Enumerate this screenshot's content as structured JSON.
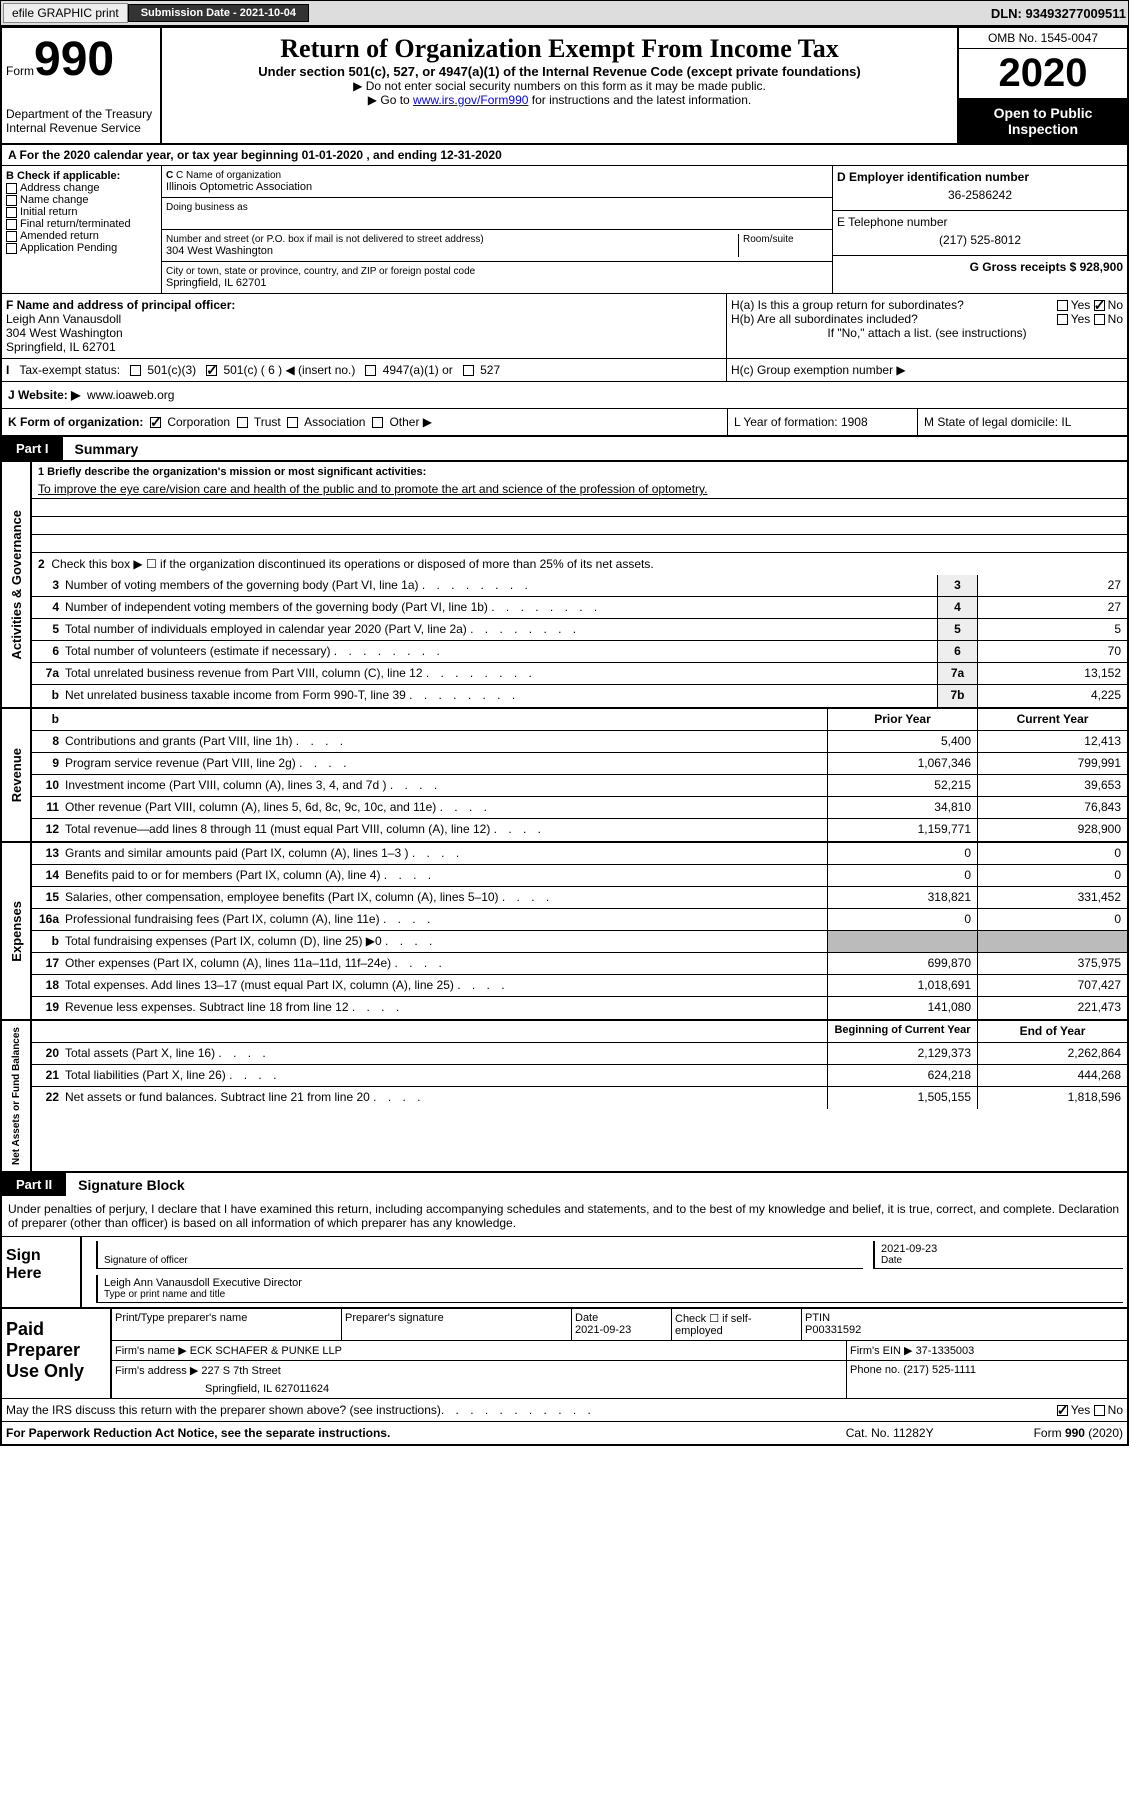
{
  "header": {
    "efile": "efile GRAPHIC print",
    "submission": "Submission Date - 2021-10-04",
    "dln": "DLN: 93493277009511"
  },
  "form": {
    "label": "Form",
    "number": "990",
    "dept": "Department of the Treasury",
    "irs": "Internal Revenue Service",
    "title": "Return of Organization Exempt From Income Tax",
    "subtitle": "Under section 501(c), 527, or 4947(a)(1) of the Internal Revenue Code (except private foundations)",
    "note1": "▶ Do not enter social security numbers on this form as it may be made public.",
    "note2_pre": "▶ Go to ",
    "note2_link": "www.irs.gov/Form990",
    "note2_post": " for instructions and the latest information.",
    "omb": "OMB No. 1545-0047",
    "year": "2020",
    "inspect": "Open to Public Inspection"
  },
  "a": {
    "text": "A For the 2020 calendar year, or tax year beginning 01-01-2020    , and ending 12-31-2020"
  },
  "b": {
    "label": "B Check if applicable:",
    "items": [
      "Address change",
      "Name change",
      "Initial return",
      "Final return/terminated",
      "Amended return",
      "Application Pending"
    ]
  },
  "c": {
    "name_label": "C Name of organization",
    "name": "Illinois Optometric Association",
    "dba_label": "Doing business as",
    "addr_label": "Number and street (or P.O. box if mail is not delivered to street address)",
    "room_label": "Room/suite",
    "addr": "304 West Washington",
    "city_label": "City or town, state or province, country, and ZIP or foreign postal code",
    "city": "Springfield, IL  62701"
  },
  "d": {
    "label": "D Employer identification number",
    "value": "36-2586242"
  },
  "e": {
    "label": "E Telephone number",
    "value": "(217) 525-8012"
  },
  "g": {
    "label": "G Gross receipts $ 928,900"
  },
  "f": {
    "label": "F Name and address of principal officer:",
    "name": "Leigh Ann Vanausdoll",
    "addr": "304 West Washington",
    "city": "Springfield, IL  62701"
  },
  "h": {
    "a": "H(a)  Is this a group return for subordinates?",
    "b": "H(b)  Are all subordinates included?",
    "b_note": "If \"No,\" attach a list. (see instructions)",
    "c": "H(c)  Group exemption number ▶"
  },
  "i": {
    "label": "Tax-exempt status:",
    "insert": "501(c) ( 6 ) ◀ (insert no.)"
  },
  "j": {
    "label": "J   Website: ▶",
    "value": "www.ioaweb.org"
  },
  "k": {
    "label": "K Form of organization:"
  },
  "l": {
    "label": "L Year of formation: 1908"
  },
  "m": {
    "label": "M State of legal domicile: IL"
  },
  "parts": {
    "p1": "Part I",
    "p1_title": "Summary",
    "p2": "Part II",
    "p2_title": "Signature Block"
  },
  "summary": {
    "l1_label": "1  Briefly describe the organization's mission or most significant activities:",
    "l1_text": "To improve the eye care/vision care and health of the public and to promote the art and science of the profession of optometry.",
    "l2": "Check this box ▶ ☐  if the organization discontinued its operations or disposed of more than 25% of its net assets.",
    "lines": [
      {
        "n": "3",
        "t": "Number of voting members of the governing body (Part VI, line 1a)",
        "box": "3",
        "v": "27"
      },
      {
        "n": "4",
        "t": "Number of independent voting members of the governing body (Part VI, line 1b)",
        "box": "4",
        "v": "27"
      },
      {
        "n": "5",
        "t": "Total number of individuals employed in calendar year 2020 (Part V, line 2a)",
        "box": "5",
        "v": "5"
      },
      {
        "n": "6",
        "t": "Total number of volunteers (estimate if necessary)",
        "box": "6",
        "v": "70"
      },
      {
        "n": "7a",
        "t": "Total unrelated business revenue from Part VIII, column (C), line 12",
        "box": "7a",
        "v": "13,152"
      },
      {
        "n": "b",
        "t": "Net unrelated business taxable income from Form 990-T, line 39",
        "box": "7b",
        "v": "4,225"
      }
    ],
    "hdr_prior": "Prior Year",
    "hdr_current": "Current Year",
    "revenue": [
      {
        "n": "8",
        "t": "Contributions and grants (Part VIII, line 1h)",
        "p": "5,400",
        "c": "12,413"
      },
      {
        "n": "9",
        "t": "Program service revenue (Part VIII, line 2g)",
        "p": "1,067,346",
        "c": "799,991"
      },
      {
        "n": "10",
        "t": "Investment income (Part VIII, column (A), lines 3, 4, and 7d )",
        "p": "52,215",
        "c": "39,653"
      },
      {
        "n": "11",
        "t": "Other revenue (Part VIII, column (A), lines 5, 6d, 8c, 9c, 10c, and 11e)",
        "p": "34,810",
        "c": "76,843"
      },
      {
        "n": "12",
        "t": "Total revenue—add lines 8 through 11 (must equal Part VIII, column (A), line 12)",
        "p": "1,159,771",
        "c": "928,900"
      }
    ],
    "expenses": [
      {
        "n": "13",
        "t": "Grants and similar amounts paid (Part IX, column (A), lines 1–3 )",
        "p": "0",
        "c": "0"
      },
      {
        "n": "14",
        "t": "Benefits paid to or for members (Part IX, column (A), line 4)",
        "p": "0",
        "c": "0"
      },
      {
        "n": "15",
        "t": "Salaries, other compensation, employee benefits (Part IX, column (A), lines 5–10)",
        "p": "318,821",
        "c": "331,452"
      },
      {
        "n": "16a",
        "t": "Professional fundraising fees (Part IX, column (A), line 11e)",
        "p": "0",
        "c": "0"
      },
      {
        "n": "b",
        "t": "Total fundraising expenses (Part IX, column (D), line 25) ▶0",
        "p": "",
        "c": "",
        "shade": true
      },
      {
        "n": "17",
        "t": "Other expenses (Part IX, column (A), lines 11a–11d, 11f–24e)",
        "p": "699,870",
        "c": "375,975"
      },
      {
        "n": "18",
        "t": "Total expenses. Add lines 13–17 (must equal Part IX, column (A), line 25)",
        "p": "1,018,691",
        "c": "707,427"
      },
      {
        "n": "19",
        "t": "Revenue less expenses. Subtract line 18 from line 12",
        "p": "141,080",
        "c": "221,473"
      }
    ],
    "hdr_begin": "Beginning of Current Year",
    "hdr_end": "End of Year",
    "netassets": [
      {
        "n": "20",
        "t": "Total assets (Part X, line 16)",
        "p": "2,129,373",
        "c": "2,262,864"
      },
      {
        "n": "21",
        "t": "Total liabilities (Part X, line 26)",
        "p": "624,218",
        "c": "444,268"
      },
      {
        "n": "22",
        "t": "Net assets or fund balances. Subtract line 21 from line 20",
        "p": "1,505,155",
        "c": "1,818,596"
      }
    ]
  },
  "vlabels": {
    "gov": "Activities & Governance",
    "rev": "Revenue",
    "exp": "Expenses",
    "net": "Net Assets or Fund Balances"
  },
  "sig": {
    "perjury": "Under penalties of perjury, I declare that I have examined this return, including accompanying schedules and statements, and to the best of my knowledge and belief, it is true, correct, and complete. Declaration of preparer (other than officer) is based on all information of which preparer has any knowledge.",
    "sign_here": "Sign Here",
    "officer_label": "Signature of officer",
    "date_label": "Date",
    "date": "2021-09-23",
    "name": "Leigh Ann Vanausdoll  Executive Director",
    "name_label": "Type or print name and title"
  },
  "prep": {
    "label": "Paid Preparer Use Only",
    "print_label": "Print/Type preparer's name",
    "sig_label": "Preparer's signature",
    "date_label": "Date",
    "date": "2021-09-23",
    "check_label": "Check ☐ if self-employed",
    "ptin_label": "PTIN",
    "ptin": "P00331592",
    "firm_label": "Firm's name     ▶",
    "firm": "ECK SCHAFER & PUNKE LLP",
    "ein_label": "Firm's EIN ▶",
    "ein": "37-1335003",
    "addr_label": "Firm's address ▶",
    "addr": "227 S 7th Street",
    "addr2": "Springfield, IL  627011624",
    "phone_label": "Phone no.",
    "phone": "(217) 525-1111",
    "discuss": "May the IRS discuss this return with the preparer shown above? (see instructions)"
  },
  "footer": {
    "left": "For Paperwork Reduction Act Notice, see the separate instructions.",
    "mid": "Cat. No. 11282Y",
    "right": "Form 990 (2020)"
  }
}
